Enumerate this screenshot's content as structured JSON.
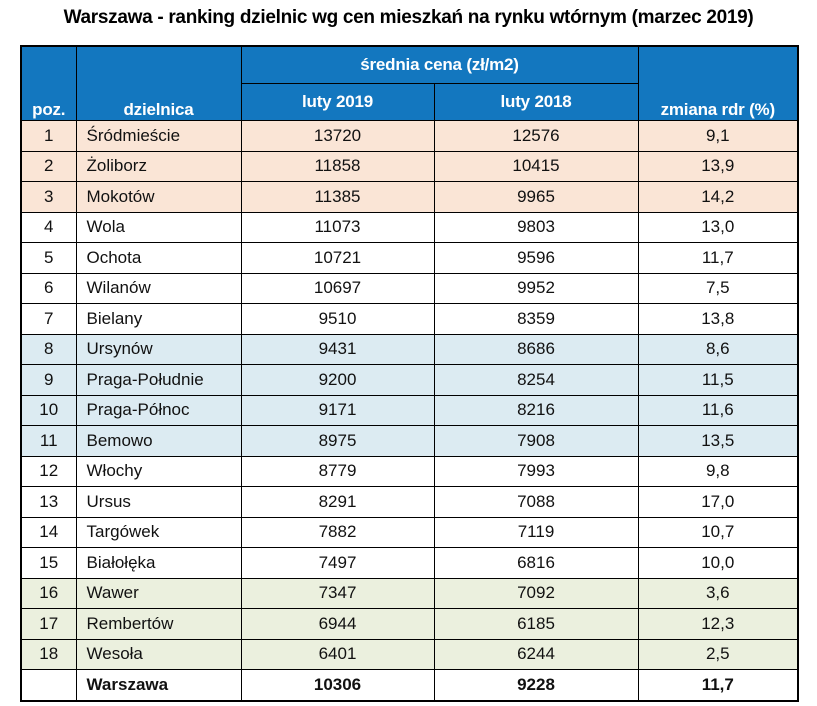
{
  "page_title": "Warszawa - ranking dzielnic wg cen mieszkań na rynku wtórnym (marzec 2019)",
  "colors": {
    "header_bg": "#1377BF",
    "header_text": "#FFFFFF",
    "row_highlight_peach": "#FAE5D6",
    "row_highlight_blue": "#DCEBF2",
    "row_highlight_green": "#EBF0DE",
    "border": "#000000"
  },
  "chart_data": {
    "type": "table",
    "title": "Warszawa - ranking dzielnic wg cen mieszkań na rynku wtórnym (marzec 2019)",
    "column_group_header": "średnia cena (zł/m2)",
    "columns": [
      "poz.",
      "dzielnica",
      "luty 2019",
      "luty 2018",
      "zmiana rdr (%)"
    ],
    "rows": [
      {
        "poz": "1",
        "dzielnica": "Śródmieście",
        "luty_2019": 13720,
        "luty_2018": 12576,
        "zmiana_rdr_pct": "9,1",
        "highlight": "peach"
      },
      {
        "poz": "2",
        "dzielnica": "Żoliborz",
        "luty_2019": 11858,
        "luty_2018": 10415,
        "zmiana_rdr_pct": "13,9",
        "highlight": "peach"
      },
      {
        "poz": "3",
        "dzielnica": "Mokotów",
        "luty_2019": 11385,
        "luty_2018": 9965,
        "zmiana_rdr_pct": "14,2",
        "highlight": "peach"
      },
      {
        "poz": "4",
        "dzielnica": "Wola",
        "luty_2019": 11073,
        "luty_2018": 9803,
        "zmiana_rdr_pct": "13,0",
        "highlight": ""
      },
      {
        "poz": "5",
        "dzielnica": "Ochota",
        "luty_2019": 10721,
        "luty_2018": 9596,
        "zmiana_rdr_pct": "11,7",
        "highlight": ""
      },
      {
        "poz": "6",
        "dzielnica": "Wilanów",
        "luty_2019": 10697,
        "luty_2018": 9952,
        "zmiana_rdr_pct": "7,5",
        "highlight": ""
      },
      {
        "poz": "7",
        "dzielnica": "Bielany",
        "luty_2019": 9510,
        "luty_2018": 8359,
        "zmiana_rdr_pct": "13,8",
        "highlight": ""
      },
      {
        "poz": "8",
        "dzielnica": "Ursynów",
        "luty_2019": 9431,
        "luty_2018": 8686,
        "zmiana_rdr_pct": "8,6",
        "highlight": "blue"
      },
      {
        "poz": "9",
        "dzielnica": "Praga-Południe",
        "luty_2019": 9200,
        "luty_2018": 8254,
        "zmiana_rdr_pct": "11,5",
        "highlight": "blue"
      },
      {
        "poz": "10",
        "dzielnica": "Praga-Północ",
        "luty_2019": 9171,
        "luty_2018": 8216,
        "zmiana_rdr_pct": "11,6",
        "highlight": "blue"
      },
      {
        "poz": "11",
        "dzielnica": "Bemowo",
        "luty_2019": 8975,
        "luty_2018": 7908,
        "zmiana_rdr_pct": "13,5",
        "highlight": "blue"
      },
      {
        "poz": "12",
        "dzielnica": "Włochy",
        "luty_2019": 8779,
        "luty_2018": 7993,
        "zmiana_rdr_pct": "9,8",
        "highlight": ""
      },
      {
        "poz": "13",
        "dzielnica": "Ursus",
        "luty_2019": 8291,
        "luty_2018": 7088,
        "zmiana_rdr_pct": "17,0",
        "highlight": ""
      },
      {
        "poz": "14",
        "dzielnica": "Targówek",
        "luty_2019": 7882,
        "luty_2018": 7119,
        "zmiana_rdr_pct": "10,7",
        "highlight": ""
      },
      {
        "poz": "15",
        "dzielnica": "Białołęka",
        "luty_2019": 7497,
        "luty_2018": 6816,
        "zmiana_rdr_pct": "10,0",
        "highlight": ""
      },
      {
        "poz": "16",
        "dzielnica": "Wawer",
        "luty_2019": 7347,
        "luty_2018": 7092,
        "zmiana_rdr_pct": "3,6",
        "highlight": "green"
      },
      {
        "poz": "17",
        "dzielnica": "Rembertów",
        "luty_2019": 6944,
        "luty_2018": 6185,
        "zmiana_rdr_pct": "12,3",
        "highlight": "green"
      },
      {
        "poz": "18",
        "dzielnica": "Wesoła",
        "luty_2019": 6401,
        "luty_2018": 6244,
        "zmiana_rdr_pct": "2,5",
        "highlight": "green"
      }
    ],
    "summary_row": {
      "poz": "",
      "dzielnica": "Warszawa",
      "luty_2019": 10306,
      "luty_2018": 9228,
      "zmiana_rdr_pct": "11,7"
    }
  }
}
